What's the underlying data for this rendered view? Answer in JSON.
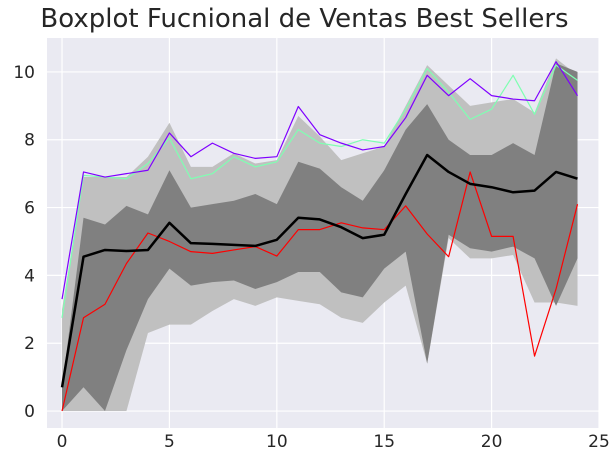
{
  "chart_data": {
    "type": "line",
    "title": "Boxplot Fucnional de Ventas Best Sellers",
    "xlabel": "",
    "ylabel": "",
    "xlim": [
      -0.7,
      25.0
    ],
    "ylim": [
      -0.5,
      11.0
    ],
    "grid": true,
    "x_ticks": [
      0,
      5,
      10,
      15,
      20,
      25
    ],
    "y_ticks": [
      0,
      2,
      4,
      6,
      8,
      10
    ],
    "x": [
      0,
      1,
      2,
      3,
      4,
      5,
      6,
      7,
      8,
      9,
      10,
      11,
      12,
      13,
      14,
      15,
      16,
      17,
      18,
      19,
      20,
      21,
      22,
      23,
      24
    ],
    "bands": [
      {
        "role": "outer-envelope",
        "color": "#c0c0c0",
        "lower": [
          0,
          0,
          0,
          0,
          2.3,
          2.55,
          2.55,
          2.95,
          3.3,
          3.1,
          3.35,
          3.25,
          3.15,
          2.75,
          2.6,
          3.2,
          3.7,
          1.4,
          5.1,
          4.5,
          4.5,
          4.6,
          3.2,
          3.2,
          3.1
        ],
        "upper": [
          3.0,
          6.9,
          6.9,
          6.9,
          7.5,
          8.5,
          7.2,
          7.2,
          7.6,
          7.3,
          7.4,
          8.7,
          8.1,
          7.4,
          7.6,
          7.8,
          9.0,
          10.2,
          9.6,
          9.0,
          9.1,
          9.2,
          8.8,
          10.4,
          9.9
        ]
      },
      {
        "role": "central-region",
        "color": "#808080",
        "lower": [
          0,
          0.7,
          0,
          1.8,
          3.3,
          4.2,
          3.7,
          3.8,
          3.85,
          3.6,
          3.8,
          4.1,
          4.1,
          3.5,
          3.35,
          4.2,
          4.7,
          1.4,
          5.2,
          4.8,
          4.7,
          4.85,
          4.5,
          3.1,
          4.5
        ],
        "upper": [
          0.7,
          5.7,
          5.5,
          6.05,
          5.8,
          7.1,
          6.0,
          6.1,
          6.2,
          6.4,
          6.1,
          7.35,
          7.15,
          6.6,
          6.2,
          7.1,
          8.3,
          9.05,
          8.0,
          7.55,
          7.55,
          7.9,
          7.55,
          10.25,
          10.0
        ]
      }
    ],
    "series": [
      {
        "role": "median",
        "color": "#000000",
        "width": 2.5,
        "values": [
          0.7,
          4.55,
          4.75,
          4.72,
          4.75,
          5.55,
          4.95,
          4.93,
          4.9,
          4.87,
          5.05,
          5.7,
          5.65,
          5.42,
          5.1,
          5.2,
          6.4,
          7.55,
          7.05,
          6.7,
          6.6,
          6.45,
          6.5,
          7.05,
          6.85
        ]
      },
      {
        "role": "outlier-1",
        "color": "#7fffb2",
        "width": 1.2,
        "values": [
          2.75,
          6.95,
          6.9,
          6.85,
          7.3,
          8.05,
          6.85,
          7.0,
          7.5,
          7.2,
          7.35,
          8.3,
          7.9,
          7.8,
          8.0,
          7.9,
          8.9,
          10.1,
          9.4,
          8.6,
          8.9,
          9.9,
          8.75,
          10.2,
          9.75
        ]
      },
      {
        "role": "outlier-2",
        "color": "#7f00ff",
        "width": 1.2,
        "values": [
          3.3,
          7.05,
          6.9,
          7.0,
          7.1,
          8.2,
          7.5,
          7.9,
          7.6,
          7.45,
          7.5,
          8.98,
          8.15,
          7.9,
          7.7,
          7.8,
          8.65,
          9.9,
          9.3,
          9.8,
          9.3,
          9.2,
          9.15,
          10.3,
          9.3
        ]
      },
      {
        "role": "outlier-3",
        "color": "#ff0000",
        "width": 1.2,
        "values": [
          0,
          2.75,
          3.15,
          4.35,
          5.25,
          5.0,
          4.7,
          4.65,
          4.75,
          4.85,
          4.57,
          5.35,
          5.35,
          5.55,
          5.4,
          5.35,
          6.05,
          5.22,
          4.55,
          7.05,
          5.15,
          5.15,
          1.62,
          3.6,
          6.1
        ]
      }
    ]
  }
}
